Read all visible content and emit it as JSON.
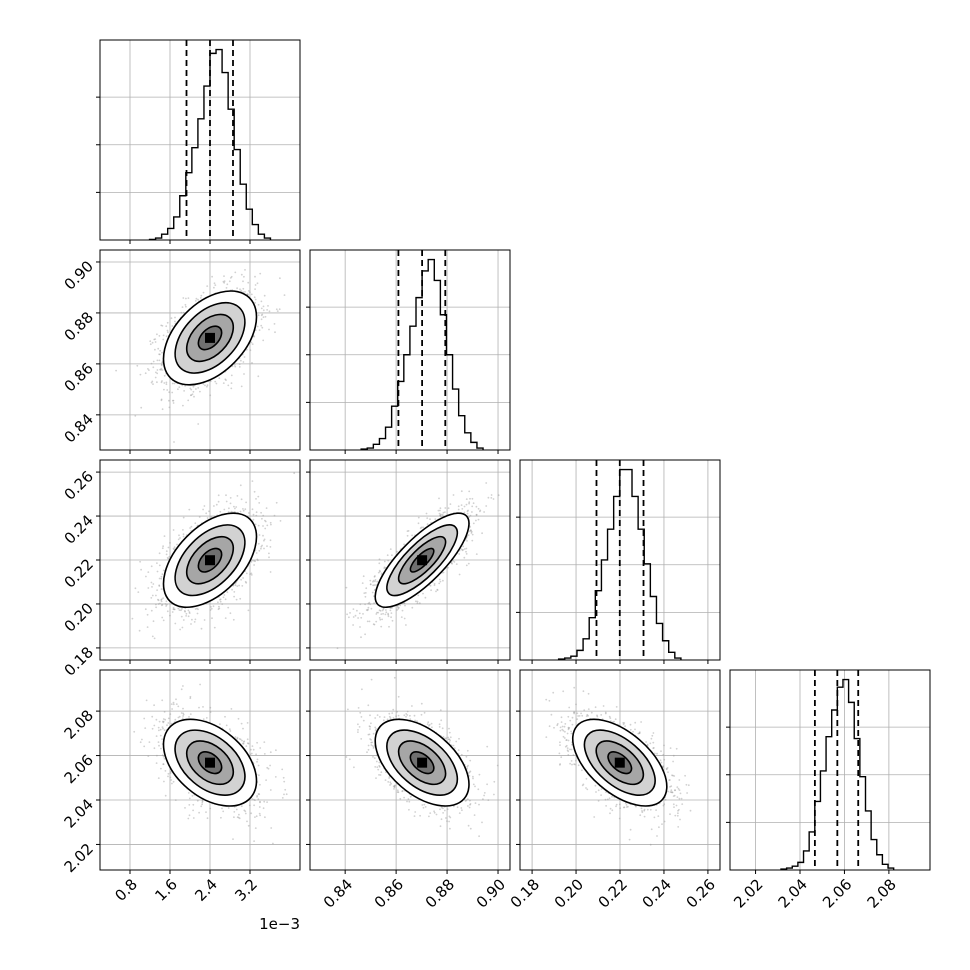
{
  "chart_data": {
    "type": "corner",
    "title": "",
    "parameters": [
      {
        "range": [
          0.0002,
          0.0042
        ],
        "ticks": [
          0.0008,
          0.0016,
          0.0024,
          0.0032
        ],
        "tick_labels": [
          "0.8",
          "1.6",
          "2.4",
          "3.2"
        ],
        "offset_label": "1e−3",
        "quantiles": [
          0.00193,
          0.0024,
          0.00286
        ],
        "histogram": [
          0.3,
          1,
          3,
          6,
          12,
          23,
          35,
          48,
          63,
          80,
          97,
          99,
          87,
          68,
          47,
          29,
          16,
          8,
          3,
          1
        ]
      },
      {
        "range": [
          0.8262,
          0.9047
        ],
        "ticks": [
          0.84,
          0.86,
          0.88,
          0.9
        ],
        "tick_labels": [
          "0.84",
          "0.86",
          "0.88",
          "0.90"
        ],
        "quantiles": [
          0.8609,
          0.8702,
          0.8793
        ],
        "histogram": [
          0.5,
          1,
          3,
          6,
          12,
          23,
          36,
          50,
          65,
          80,
          94,
          100,
          89,
          71,
          50,
          32,
          18,
          9,
          4,
          1
        ]
      },
      {
        "range": [
          0.1745,
          0.2655
        ],
        "ticks": [
          0.18,
          0.2,
          0.22,
          0.24,
          0.26
        ],
        "tick_labels": [
          "0.18",
          "0.20",
          "0.22",
          "0.24",
          "0.26"
        ],
        "quantiles": [
          0.2093,
          0.2199,
          0.2307
        ],
        "histogram": [
          0.5,
          1,
          2,
          5,
          11,
          22,
          36,
          52,
          68,
          85,
          99,
          99,
          85,
          68,
          50,
          33,
          19,
          10,
          4,
          1
        ]
      },
      {
        "range": [
          2.0085,
          2.0985
        ],
        "ticks": [
          2.02,
          2.04,
          2.06,
          2.08
        ],
        "tick_labels": [
          "2.02",
          "2.04",
          "2.06",
          "2.08"
        ],
        "quantiles": [
          2.0467,
          2.0568,
          2.0662
        ],
        "histogram": [
          0.5,
          1,
          2,
          4,
          10,
          20,
          36,
          52,
          70,
          84,
          96,
          100,
          88,
          69,
          49,
          31,
          16,
          8,
          3,
          1
        ]
      }
    ],
    "pairs": [
      {
        "row": 1,
        "col": 0,
        "correlation": 0.45
      },
      {
        "row": 2,
        "col": 0,
        "correlation": 0.5
      },
      {
        "row": 2,
        "col": 1,
        "correlation": 0.78
      },
      {
        "row": 3,
        "col": 0,
        "correlation": -0.42
      },
      {
        "row": 3,
        "col": 1,
        "correlation": -0.5
      },
      {
        "row": 3,
        "col": 2,
        "correlation": -0.55
      }
    ],
    "colors": {
      "line": "#000000",
      "grid": "#b0b0b0",
      "points": "#9a9a9a"
    },
    "grid": true,
    "histogram_bins": 20,
    "quantile_levels": [
      0.16,
      0.5,
      0.84
    ],
    "contour_levels_sigma": [
      0.5,
      1.0,
      1.5,
      2.0
    ]
  }
}
